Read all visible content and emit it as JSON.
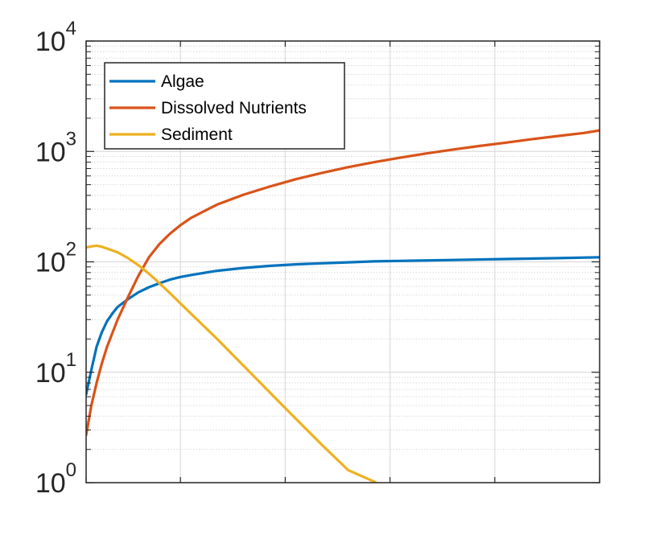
{
  "chart_data": {
    "type": "line",
    "title": "",
    "xlabel": "",
    "ylabel": "",
    "y_scale": "log",
    "ylim": [
      1,
      10000
    ],
    "x_ticks": [
      0,
      18,
      38,
      58,
      78,
      98
    ],
    "xlim": [
      0,
      98
    ],
    "x_tick_labels_shown": false,
    "y_ticks": [
      {
        "value": 1,
        "base": "10",
        "exp": "0"
      },
      {
        "value": 10,
        "base": "10",
        "exp": "1"
      },
      {
        "value": 100,
        "base": "10",
        "exp": "2"
      },
      {
        "value": 1000,
        "base": "10",
        "exp": "3"
      },
      {
        "value": 10000,
        "base": "10",
        "exp": "4"
      }
    ],
    "grid": true,
    "minor_grid": true,
    "legend_position": "top-left",
    "series": [
      {
        "name": "Algae",
        "color": "#0072BD",
        "x": [
          0,
          1,
          2,
          3,
          4,
          5,
          6,
          8,
          10,
          12,
          14,
          16,
          18,
          20,
          25,
          30,
          35,
          40,
          45,
          50,
          55,
          60,
          70,
          80,
          90,
          98
        ],
        "y": [
          6.3,
          10.5,
          17,
          23,
          29,
          34,
          39,
          46,
          53,
          59,
          64,
          69,
          73,
          76,
          83,
          88,
          92,
          95,
          97,
          99,
          101,
          102,
          104,
          106,
          108,
          110
        ]
      },
      {
        "name": "Dissolved Nutrients",
        "color": "#D95319",
        "x": [
          0,
          1,
          2,
          3,
          4,
          6,
          8,
          10,
          12,
          14,
          16,
          18,
          20,
          25,
          30,
          35,
          40,
          45,
          50,
          55,
          60,
          65,
          70,
          75,
          80,
          85,
          90,
          95,
          98
        ],
        "y": [
          2.7,
          5,
          8,
          12,
          17,
          30,
          48,
          75,
          110,
          145,
          180,
          215,
          250,
          330,
          405,
          480,
          560,
          640,
          720,
          800,
          880,
          960,
          1040,
          1120,
          1200,
          1290,
          1380,
          1470,
          1550
        ]
      },
      {
        "name": "Sediment",
        "color": "#EDB120",
        "x": [
          0,
          1,
          2,
          3,
          4,
          6,
          8,
          10,
          12,
          14,
          16,
          20,
          25,
          30,
          35,
          40,
          45,
          50,
          55,
          56
        ],
        "y": [
          135,
          138,
          140,
          137,
          132,
          122,
          108,
          93,
          78,
          64,
          52,
          34,
          20,
          11.5,
          6.6,
          3.8,
          2.2,
          1.3,
          1.02,
          0.95
        ]
      }
    ]
  }
}
